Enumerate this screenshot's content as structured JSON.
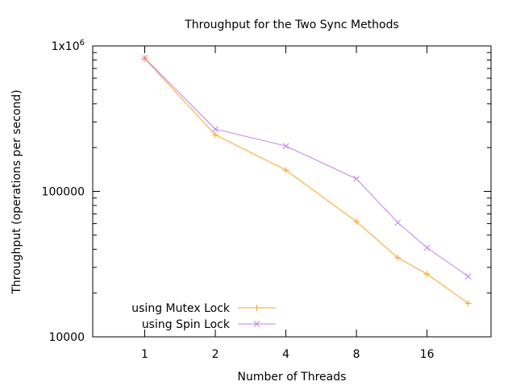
{
  "chart_data": {
    "type": "line",
    "title": "Throughput for the Two Sync Methods",
    "xlabel": "Number of Threads",
    "ylabel": "Throughput (operations per second)",
    "x_scale": "log2",
    "y_scale": "log10",
    "x_ticks": [
      1,
      2,
      4,
      8,
      16
    ],
    "x_tick_labels": [
      "1",
      "2",
      "4",
      "8",
      "16"
    ],
    "y_ticks": [
      10000,
      100000,
      1000000
    ],
    "y_tick_labels": [
      "10000",
      "100000",
      "1x10^6"
    ],
    "xlim": [
      0.6,
      30
    ],
    "ylim": [
      10000,
      1000000
    ],
    "grid": false,
    "legend_position": "bottom-left",
    "x": [
      1,
      2,
      4,
      8,
      12,
      16,
      24
    ],
    "series": [
      {
        "name": "using Mutex Lock",
        "color": "#f5a623",
        "marker": "+",
        "values": [
          820000,
          245000,
          140000,
          62000,
          35000,
          27000,
          17000
        ]
      },
      {
        "name": "using Spin Lock",
        "color": "#c080f0",
        "marker": "x",
        "values": [
          825000,
          268000,
          205000,
          122000,
          61000,
          41000,
          26000
        ]
      }
    ]
  }
}
